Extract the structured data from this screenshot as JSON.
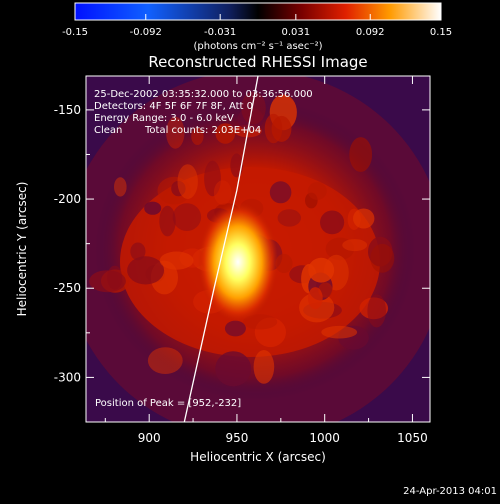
{
  "chart_data": {
    "type": "heatmap",
    "title": "Reconstructed RHESSI Image",
    "xlabel": "Heliocentric X (arcsec)",
    "ylabel": "Heliocentric Y (arcsec)",
    "xlim": [
      864,
      1060
    ],
    "ylim": [
      -325,
      -131
    ],
    "x_ticks": [
      900,
      950,
      1000,
      1050
    ],
    "y_ticks": [
      -150,
      -200,
      -250,
      -300
    ],
    "grid": false,
    "colorbar": {
      "range": [
        -0.15,
        0.15
      ],
      "tick_values": [
        -0.15,
        -0.092,
        -0.031,
        0.031,
        0.092,
        0.15
      ],
      "tick_labels": [
        "-0.15",
        "-0.092",
        "-0.031",
        "0.031",
        "0.092",
        "0.15"
      ],
      "unit_label": "(photons cm⁻² s⁻¹ asec⁻²)",
      "colormap": "blue-black-red-yellow-white"
    },
    "annotations": [
      "25-Dec-2002 03:35:32.000 to 03:36:56.000",
      "Detectors: 4F 5F 6F 7F 8F, Att 0",
      "Energy Range: 3.0 - 6.0 keV",
      "Clean",
      "Total counts: 2.03E+04"
    ],
    "peak_label": "Position of Peak = [952,-232]",
    "peak": [
      952,
      -232
    ],
    "limb_curve": [
      [
        920,
        -325
      ],
      [
        937,
        -250
      ],
      [
        950,
        -195
      ],
      [
        962,
        -131
      ]
    ]
  },
  "footer": {
    "timestamp": "24-Apr-2013 04:01"
  }
}
